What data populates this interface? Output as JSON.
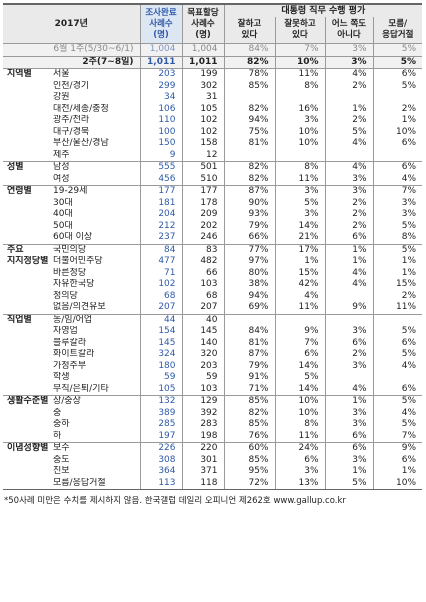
{
  "header": {
    "year": "2017년",
    "col_sample": "조사완료\n사례수\n(명)",
    "col_target": "목표할당\n사례수\n(명)",
    "col_group": "대통령 직무 수행 평가",
    "answers": [
      "잘하고\n있다",
      "잘못하고\n있다",
      "어느 쪽도\n아니다",
      "모름/\n응답거절"
    ]
  },
  "prev_row": {
    "label": "6월 1주(5/30~6/1)",
    "sample": "1,004",
    "target": "1,004",
    "v": [
      "84%",
      "7%",
      "3%",
      "5%"
    ]
  },
  "curr_row": {
    "label": "2주(7~8일)",
    "sample": "1,011",
    "target": "1,011",
    "v": [
      "82%",
      "10%",
      "3%",
      "5%"
    ]
  },
  "groups": [
    {
      "cat": "지역별",
      "rows": [
        {
          "sub": "서울",
          "sample": "203",
          "target": "199",
          "v": [
            "78%",
            "11%",
            "4%",
            "6%"
          ]
        },
        {
          "sub": "인천/경기",
          "sample": "299",
          "target": "302",
          "v": [
            "85%",
            "8%",
            "2%",
            "5%"
          ]
        },
        {
          "sub": "강원",
          "sample": "34",
          "target": "31",
          "v": [
            "",
            "",
            "",
            ""
          ]
        },
        {
          "sub": "대전/세종/충청",
          "sample": "106",
          "target": "105",
          "v": [
            "82%",
            "16%",
            "1%",
            "2%"
          ]
        },
        {
          "sub": "광주/전라",
          "sample": "110",
          "target": "102",
          "v": [
            "94%",
            "3%",
            "2%",
            "1%"
          ]
        },
        {
          "sub": "대구/경북",
          "sample": "100",
          "target": "102",
          "v": [
            "75%",
            "10%",
            "5%",
            "10%"
          ]
        },
        {
          "sub": "부산/울산/경남",
          "sample": "150",
          "target": "158",
          "v": [
            "81%",
            "10%",
            "4%",
            "6%"
          ]
        },
        {
          "sub": "제주",
          "sample": "9",
          "target": "12",
          "v": [
            "",
            "",
            "",
            ""
          ]
        }
      ]
    },
    {
      "cat": "성별",
      "rows": [
        {
          "sub": "남성",
          "sample": "555",
          "target": "501",
          "v": [
            "82%",
            "8%",
            "4%",
            "6%"
          ]
        },
        {
          "sub": "여성",
          "sample": "456",
          "target": "510",
          "v": [
            "82%",
            "11%",
            "3%",
            "4%"
          ]
        }
      ]
    },
    {
      "cat": "연령별",
      "rows": [
        {
          "sub": "19-29세",
          "sample": "177",
          "target": "177",
          "v": [
            "87%",
            "3%",
            "3%",
            "7%"
          ]
        },
        {
          "sub": "30대",
          "sample": "181",
          "target": "178",
          "v": [
            "90%",
            "5%",
            "2%",
            "3%"
          ]
        },
        {
          "sub": "40대",
          "sample": "204",
          "target": "209",
          "v": [
            "93%",
            "3%",
            "2%",
            "3%"
          ]
        },
        {
          "sub": "50대",
          "sample": "212",
          "target": "202",
          "v": [
            "79%",
            "14%",
            "2%",
            "5%"
          ]
        },
        {
          "sub": "60대 이상",
          "sample": "237",
          "target": "246",
          "v": [
            "66%",
            "21%",
            "6%",
            "8%"
          ]
        }
      ]
    },
    {
      "cat": "주요",
      "rows": [
        {
          "sub": "국민의당",
          "sample": "84",
          "target": "83",
          "v": [
            "77%",
            "17%",
            "1%",
            "5%"
          ]
        }
      ]
    },
    {
      "cat": "지지정당별",
      "rows": [
        {
          "sub": "더불어민주당",
          "sample": "477",
          "target": "482",
          "v": [
            "97%",
            "1%",
            "1%",
            "1%"
          ]
        },
        {
          "sub": "바른정당",
          "sample": "71",
          "target": "66",
          "v": [
            "80%",
            "15%",
            "4%",
            "1%"
          ]
        },
        {
          "sub": "자유한국당",
          "sample": "102",
          "target": "103",
          "v": [
            "38%",
            "42%",
            "4%",
            "15%"
          ]
        },
        {
          "sub": "정의당",
          "sample": "68",
          "target": "68",
          "v": [
            "94%",
            "4%",
            "",
            "2%"
          ]
        },
        {
          "sub": "없음/의견유보",
          "sample": "207",
          "target": "207",
          "v": [
            "69%",
            "11%",
            "9%",
            "11%"
          ]
        }
      ]
    },
    {
      "cat": "직업별",
      "rows": [
        {
          "sub": "농/임/어업",
          "sample": "44",
          "target": "40",
          "v": [
            "",
            "",
            "",
            ""
          ]
        },
        {
          "sub": "자영업",
          "sample": "154",
          "target": "145",
          "v": [
            "84%",
            "9%",
            "3%",
            "5%"
          ]
        },
        {
          "sub": "블루칼라",
          "sample": "145",
          "target": "140",
          "v": [
            "81%",
            "7%",
            "6%",
            "6%"
          ]
        },
        {
          "sub": "화이트칼라",
          "sample": "324",
          "target": "320",
          "v": [
            "87%",
            "6%",
            "2%",
            "5%"
          ]
        },
        {
          "sub": "가정주부",
          "sample": "180",
          "target": "203",
          "v": [
            "79%",
            "14%",
            "3%",
            "4%"
          ]
        },
        {
          "sub": "학생",
          "sample": "59",
          "target": "59",
          "v": [
            "91%",
            "5%",
            "",
            ""
          ]
        },
        {
          "sub": "무직/은퇴/기타",
          "sample": "105",
          "target": "103",
          "v": [
            "71%",
            "14%",
            "4%",
            "6%"
          ]
        }
      ]
    },
    {
      "cat": "생활수준별",
      "rows": [
        {
          "sub": "상/중상",
          "sample": "132",
          "target": "129",
          "v": [
            "85%",
            "10%",
            "1%",
            "5%"
          ]
        },
        {
          "sub": "중",
          "sample": "389",
          "target": "392",
          "v": [
            "82%",
            "10%",
            "3%",
            "4%"
          ]
        },
        {
          "sub": "중하",
          "sample": "285",
          "target": "283",
          "v": [
            "85%",
            "8%",
            "3%",
            "5%"
          ]
        },
        {
          "sub": "하",
          "sample": "197",
          "target": "198",
          "v": [
            "76%",
            "11%",
            "6%",
            "7%"
          ]
        }
      ]
    },
    {
      "cat": "이념성향별",
      "rows": [
        {
          "sub": "보수",
          "sample": "226",
          "target": "220",
          "v": [
            "60%",
            "24%",
            "6%",
            "9%"
          ]
        },
        {
          "sub": "중도",
          "sample": "308",
          "target": "301",
          "v": [
            "85%",
            "6%",
            "3%",
            "6%"
          ]
        },
        {
          "sub": "진보",
          "sample": "364",
          "target": "371",
          "v": [
            "95%",
            "3%",
            "1%",
            "1%"
          ]
        },
        {
          "sub": "모름/응답거절",
          "sample": "113",
          "target": "118",
          "v": [
            "72%",
            "13%",
            "5%",
            "10%"
          ]
        }
      ]
    }
  ],
  "footnote": "*50사례 미만은 수치를 제시하지 않음. 한국갤럽 데일리 오피니언 제262호 www.gallup.co.kr"
}
